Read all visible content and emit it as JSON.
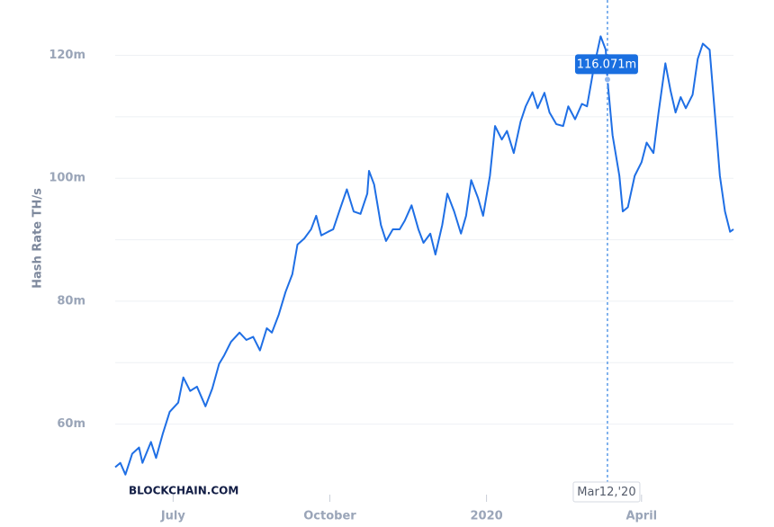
{
  "chart_data": {
    "type": "line",
    "y_label": "Hash Rate TH/s",
    "watermark": "BLOCKCHAIN.COM",
    "x": [
      "2019-05-28",
      "2019-05-31",
      "2019-06-03",
      "2019-06-07",
      "2019-06-11",
      "2019-06-13",
      "2019-06-18",
      "2019-06-21",
      "2019-06-25",
      "2019-06-29",
      "2019-07-04",
      "2019-07-07",
      "2019-07-11",
      "2019-07-15",
      "2019-07-20",
      "2019-07-24",
      "2019-07-28",
      "2019-07-31",
      "2019-08-04",
      "2019-08-09",
      "2019-08-13",
      "2019-08-17",
      "2019-08-21",
      "2019-08-25",
      "2019-08-28",
      "2019-09-01",
      "2019-09-05",
      "2019-09-09",
      "2019-09-12",
      "2019-09-16",
      "2019-09-20",
      "2019-09-23",
      "2019-09-26",
      "2019-09-30",
      "2019-10-03",
      "2019-10-07",
      "2019-10-11",
      "2019-10-15",
      "2019-10-19",
      "2019-10-23",
      "2019-10-24",
      "2019-10-27",
      "2019-10-31",
      "2019-11-03",
      "2019-11-07",
      "2019-11-11",
      "2019-11-14",
      "2019-11-18",
      "2019-11-22",
      "2019-11-25",
      "2019-11-29",
      "2019-12-02",
      "2019-12-06",
      "2019-12-09",
      "2019-12-13",
      "2019-12-17",
      "2019-12-20",
      "2019-12-23",
      "2019-12-27",
      "2019-12-30",
      "2020-01-03",
      "2020-01-06",
      "2020-01-10",
      "2020-01-13",
      "2020-01-17",
      "2020-01-21",
      "2020-01-24",
      "2020-01-28",
      "2020-01-31",
      "2020-02-04",
      "2020-02-07",
      "2020-02-11",
      "2020-02-15",
      "2020-02-18",
      "2020-02-22",
      "2020-02-26",
      "2020-02-29",
      "2020-03-04",
      "2020-03-08",
      "2020-03-11",
      "2020-03-12",
      "2020-03-15",
      "2020-03-19",
      "2020-03-21",
      "2020-03-24",
      "2020-03-28",
      "2020-04-01",
      "2020-04-04",
      "2020-04-08",
      "2020-04-11",
      "2020-04-15",
      "2020-04-18",
      "2020-04-21",
      "2020-04-24",
      "2020-04-27",
      "2020-05-01",
      "2020-05-04",
      "2020-05-07",
      "2020-05-11",
      "2020-05-14",
      "2020-05-17",
      "2020-05-20",
      "2020-05-23",
      "2020-05-25"
    ],
    "series": [
      {
        "name": "Hash Rate",
        "color": "#1f6fe5",
        "values": [
          53.0,
          53.7,
          51.8,
          55.2,
          56.2,
          53.7,
          57.1,
          54.5,
          58.5,
          62.0,
          63.5,
          67.6,
          65.4,
          66.1,
          62.9,
          65.8,
          69.8,
          71.2,
          73.4,
          74.9,
          73.7,
          74.2,
          72.0,
          75.6,
          74.9,
          77.8,
          81.5,
          84.4,
          89.2,
          90.2,
          91.7,
          93.9,
          90.7,
          91.3,
          91.7,
          95.0,
          98.2,
          94.6,
          94.2,
          97.5,
          101.2,
          99.0,
          92.4,
          89.8,
          91.7,
          91.7,
          93.1,
          95.6,
          91.7,
          89.5,
          91.0,
          87.6,
          92.4,
          97.5,
          94.6,
          91.0,
          93.9,
          99.7,
          96.8,
          93.9,
          100.4,
          108.5,
          106.3,
          107.7,
          104.1,
          109.2,
          111.7,
          114.0,
          111.4,
          113.9,
          110.7,
          108.8,
          108.5,
          111.7,
          109.6,
          112.1,
          111.7,
          118.0,
          123.1,
          120.9,
          116.071,
          107.0,
          100.4,
          94.6,
          95.3,
          100.4,
          102.6,
          105.8,
          104.1,
          110.7,
          118.7,
          114.3,
          110.7,
          113.2,
          111.4,
          113.6,
          119.4,
          121.9,
          120.9,
          110.7,
          100.4,
          94.6,
          91.3,
          91.7
        ]
      }
    ],
    "xlim": [
      "2019-05-28",
      "2020-05-25"
    ],
    "xticks": [
      {
        "value": "2019-07-01",
        "label": "July"
      },
      {
        "value": "2019-10-01",
        "label": "October"
      },
      {
        "value": "2020-01-01",
        "label": "2020"
      },
      {
        "value": "2020-04-01",
        "label": "April"
      }
    ],
    "ylim": [
      50,
      129
    ],
    "yticks": [
      {
        "value": 60,
        "label": "60m"
      },
      {
        "value": 80,
        "label": "80m"
      },
      {
        "value": 100,
        "label": "100m"
      },
      {
        "value": 120,
        "label": "120m"
      }
    ],
    "minor_grid": [
      70,
      90,
      110
    ],
    "grid": true,
    "tooltip": {
      "x": "2020-03-12",
      "value": 116.071,
      "label": "116.071m",
      "x_label": "Mar12,'20"
    }
  }
}
